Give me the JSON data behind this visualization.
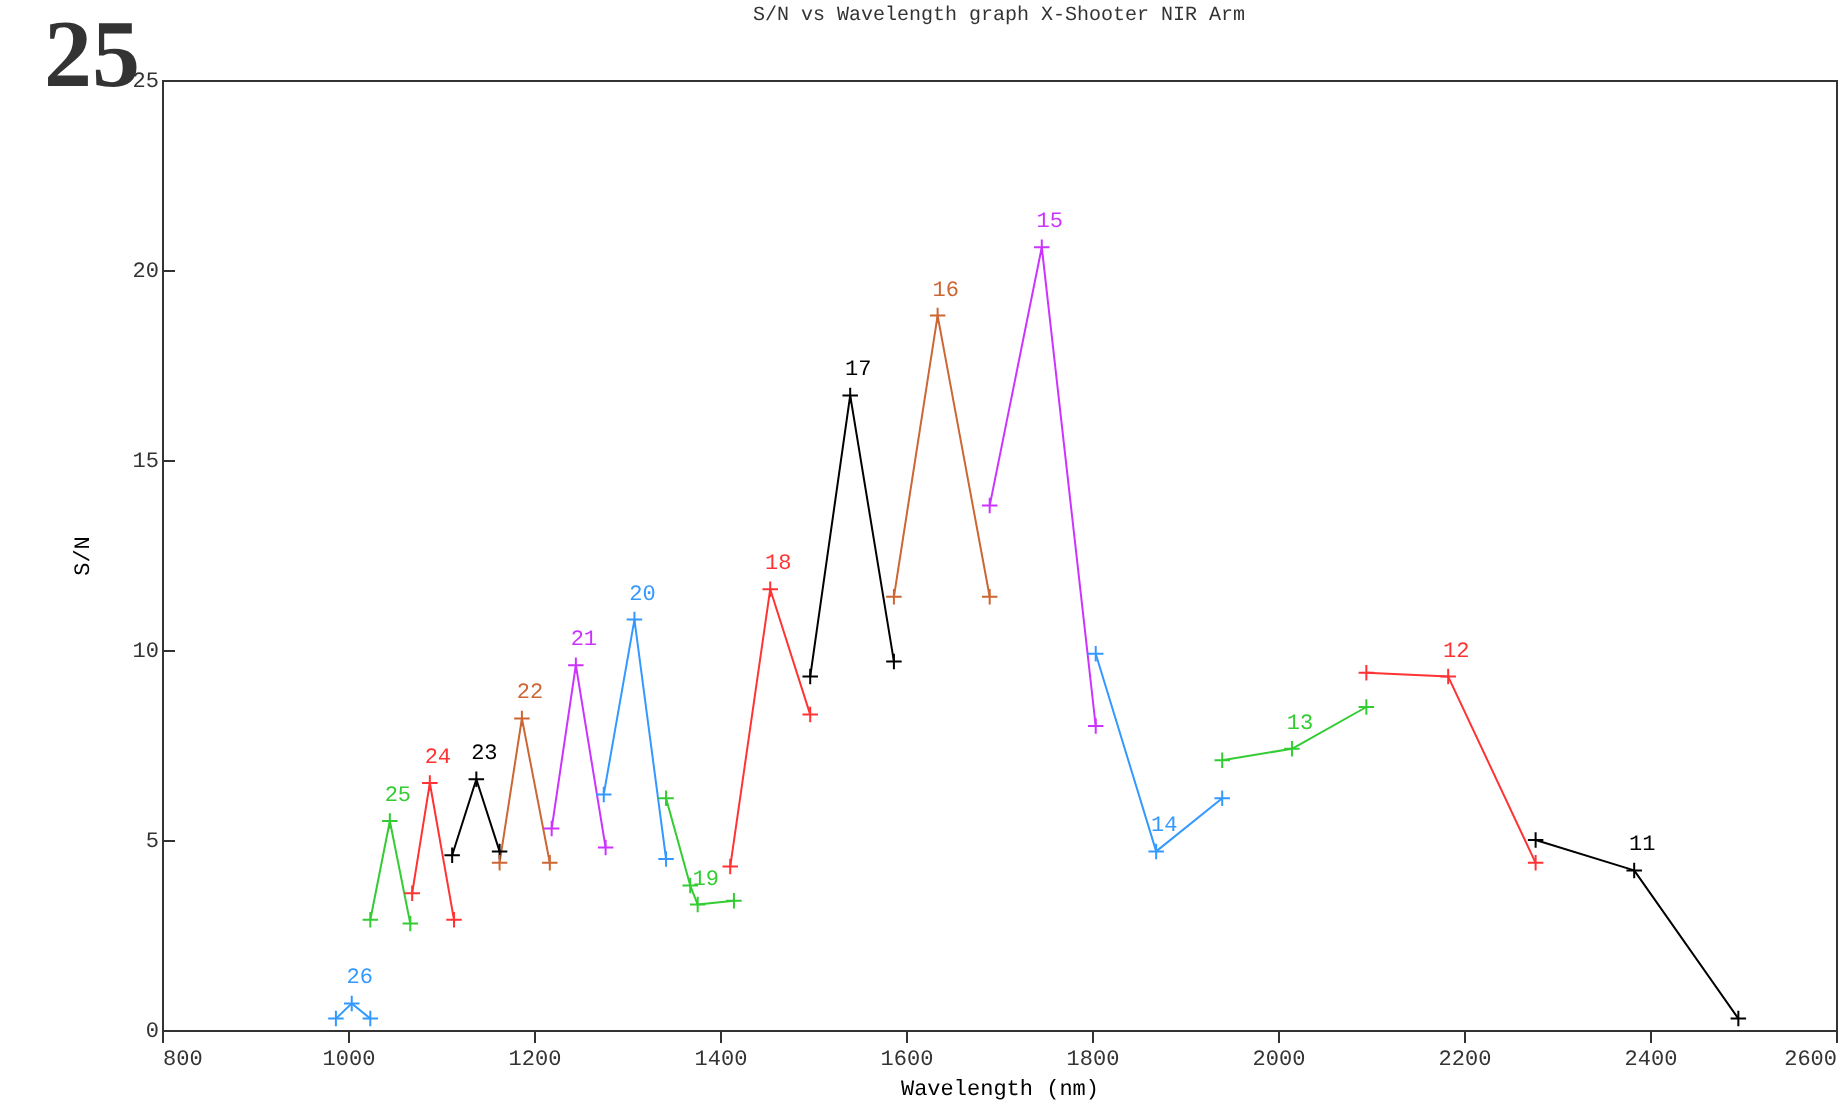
{
  "chart_data": {
    "type": "line",
    "title": "S/N vs Wavelength graph X-Shooter NIR Arm",
    "xlabel": "Wavelength (nm)",
    "ylabel": "S/N",
    "xlim": [
      800,
      2600
    ],
    "xticks": [
      800,
      1000,
      1200,
      1400,
      1600,
      1800,
      2000,
      2200,
      2400,
      2600
    ],
    "ylim": [
      0,
      25
    ],
    "yticks": [
      0,
      5,
      10,
      15,
      20,
      25
    ],
    "grid": false,
    "marker": "cross",
    "line_style": "solid",
    "annotations": [
      "25"
    ],
    "series": [
      {
        "name": "26",
        "color": "#3399ff",
        "x": [
          987,
          1004,
          1024
        ],
        "values": [
          0.3,
          0.7,
          0.3
        ]
      },
      {
        "name": "25",
        "color": "#33cc33",
        "x": [
          1024,
          1045,
          1067
        ],
        "values": [
          2.9,
          5.5,
          2.8
        ]
      },
      {
        "name": "24",
        "color": "#ff3333",
        "x": [
          1069,
          1088,
          1114
        ],
        "values": [
          3.6,
          6.5,
          2.9
        ]
      },
      {
        "name": "23",
        "color": "#000000",
        "x": [
          1112,
          1138,
          1163
        ],
        "values": [
          4.6,
          6.6,
          4.7
        ]
      },
      {
        "name": "22",
        "color": "#cc6633",
        "x": [
          1163,
          1187,
          1217
        ],
        "values": [
          4.4,
          8.2,
          4.4
        ]
      },
      {
        "name": "21",
        "color": "#cc33ff",
        "x": [
          1219,
          1245,
          1277
        ],
        "values": [
          5.3,
          9.6,
          4.8
        ]
      },
      {
        "name": "20",
        "color": "#3399ff",
        "x": [
          1275,
          1308,
          1342
        ],
        "values": [
          6.2,
          10.8,
          4.5
        ]
      },
      {
        "name": "19",
        "color": "#33cc33",
        "x": [
          1342,
          1368,
          1376,
          1415
        ],
        "values": [
          6.1,
          3.8,
          3.3,
          3.4
        ]
      },
      {
        "name": "18",
        "color": "#ff3333",
        "x": [
          1411,
          1454,
          1497
        ],
        "values": [
          4.3,
          11.6,
          8.3
        ]
      },
      {
        "name": "17",
        "color": "#000000",
        "x": [
          1497,
          1540,
          1587
        ],
        "values": [
          9.3,
          16.7,
          9.7
        ]
      },
      {
        "name": "16",
        "color": "#cc6633",
        "x": [
          1587,
          1634,
          1690
        ],
        "values": [
          11.4,
          18.8,
          11.4
        ]
      },
      {
        "name": "15",
        "color": "#cc33ff",
        "x": [
          1690,
          1746,
          1804
        ],
        "values": [
          13.8,
          20.6,
          8.0
        ]
      },
      {
        "name": "14",
        "color": "#3399ff",
        "x": [
          1804,
          1869,
          1940
        ],
        "values": [
          9.9,
          4.7,
          6.1
        ]
      },
      {
        "name": "13",
        "color": "#33cc33",
        "x": [
          1940,
          2015,
          2095
        ],
        "values": [
          7.1,
          7.4,
          8.5
        ]
      },
      {
        "name": "12",
        "color": "#ff3333",
        "x": [
          2095,
          2183,
          2277
        ],
        "values": [
          9.4,
          9.3,
          4.4
        ]
      },
      {
        "name": "11",
        "color": "#000000",
        "x": [
          2277,
          2383,
          2495
        ],
        "values": [
          5.0,
          4.2,
          0.3
        ]
      }
    ]
  }
}
